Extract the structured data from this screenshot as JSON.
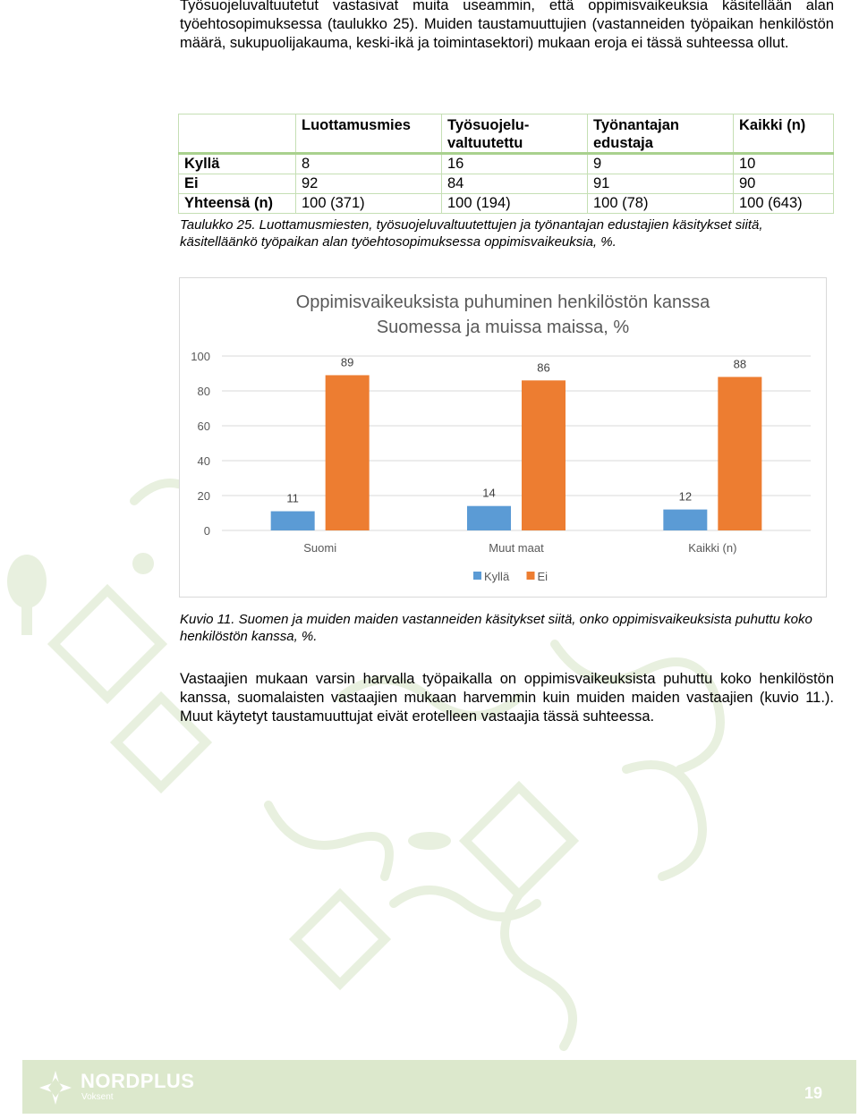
{
  "intro_paragraph": "Työsuojeluvaltuutetut vastasivat muita useammin, että oppimisvaikeuksia käsitellään alan työehtosopimuksessa (taulukko 25). Muiden taustamuuttujien (vastanneiden työpaikan henkilöstön määrä, sukupuolijakauma, keski-ikä ja toimintasektori) mukaan eroja ei tässä suhteessa ollut.",
  "table": {
    "headers": [
      "",
      "Luottamusmies",
      "Työsuojelu-valtuutettu",
      "Työnantajan edustaja",
      "Kaikki (n)"
    ],
    "rows": [
      [
        "Kyllä",
        "8",
        "16",
        "9",
        "10"
      ],
      [
        "Ei",
        "92",
        "84",
        "91",
        "90"
      ],
      [
        "Yhteensä (n)",
        "100 (371)",
        "100 (194)",
        "100 (78)",
        "100 (643)"
      ]
    ]
  },
  "table_caption": "Taulukko 25. Luottamusmiesten, työsuojeluvaltuutettujen ja työnantajan edustajien käsitykset siitä, käsitelläänkö työpaikan alan työehtosopimuksessa oppimisvaikeuksia, %.",
  "chart_data": {
    "type": "bar",
    "title": "Oppimisvaikeuksista puhuminen henkilöstön kanssa Suomessa ja muissa maissa, %",
    "title_lines": [
      "Oppimisvaikeuksista puhuminen henkilöstön kanssa",
      "Suomessa ja muissa maissa, %"
    ],
    "categories": [
      "Suomi",
      "Muut maat",
      "Kaikki (n)"
    ],
    "series": [
      {
        "name": "Kyllä",
        "values": [
          11,
          14,
          12
        ],
        "color": "#5b9bd5"
      },
      {
        "name": "Ei",
        "values": [
          89,
          86,
          88
        ],
        "color": "#ed7d31"
      }
    ],
    "yticks": [
      0,
      20,
      40,
      60,
      80,
      100
    ],
    "ylim": [
      0,
      100
    ],
    "grid": true,
    "legend": "bottom"
  },
  "figure_caption": "Kuvio 11. Suomen ja muiden maiden vastanneiden käsitykset siitä, onko oppimisvaikeuksista puhuttu koko henkilöstön kanssa, %.",
  "closing_paragraph": "Vastaajien mukaan varsin harvalla työpaikalla on oppimisvaikeuksista puhuttu koko henkilöstön kanssa, suomalaisten vastaajien mukaan harvemmin kuin muiden maiden vastaajien (kuvio 11.). Muut käytetyt taustamuuttujat eivät erotelleen vastaajia tässä suhteessa.",
  "footer": {
    "brand": "NORDPLUS",
    "sub": "Voksent",
    "page_number": "19",
    "color": "#dce8cc"
  }
}
